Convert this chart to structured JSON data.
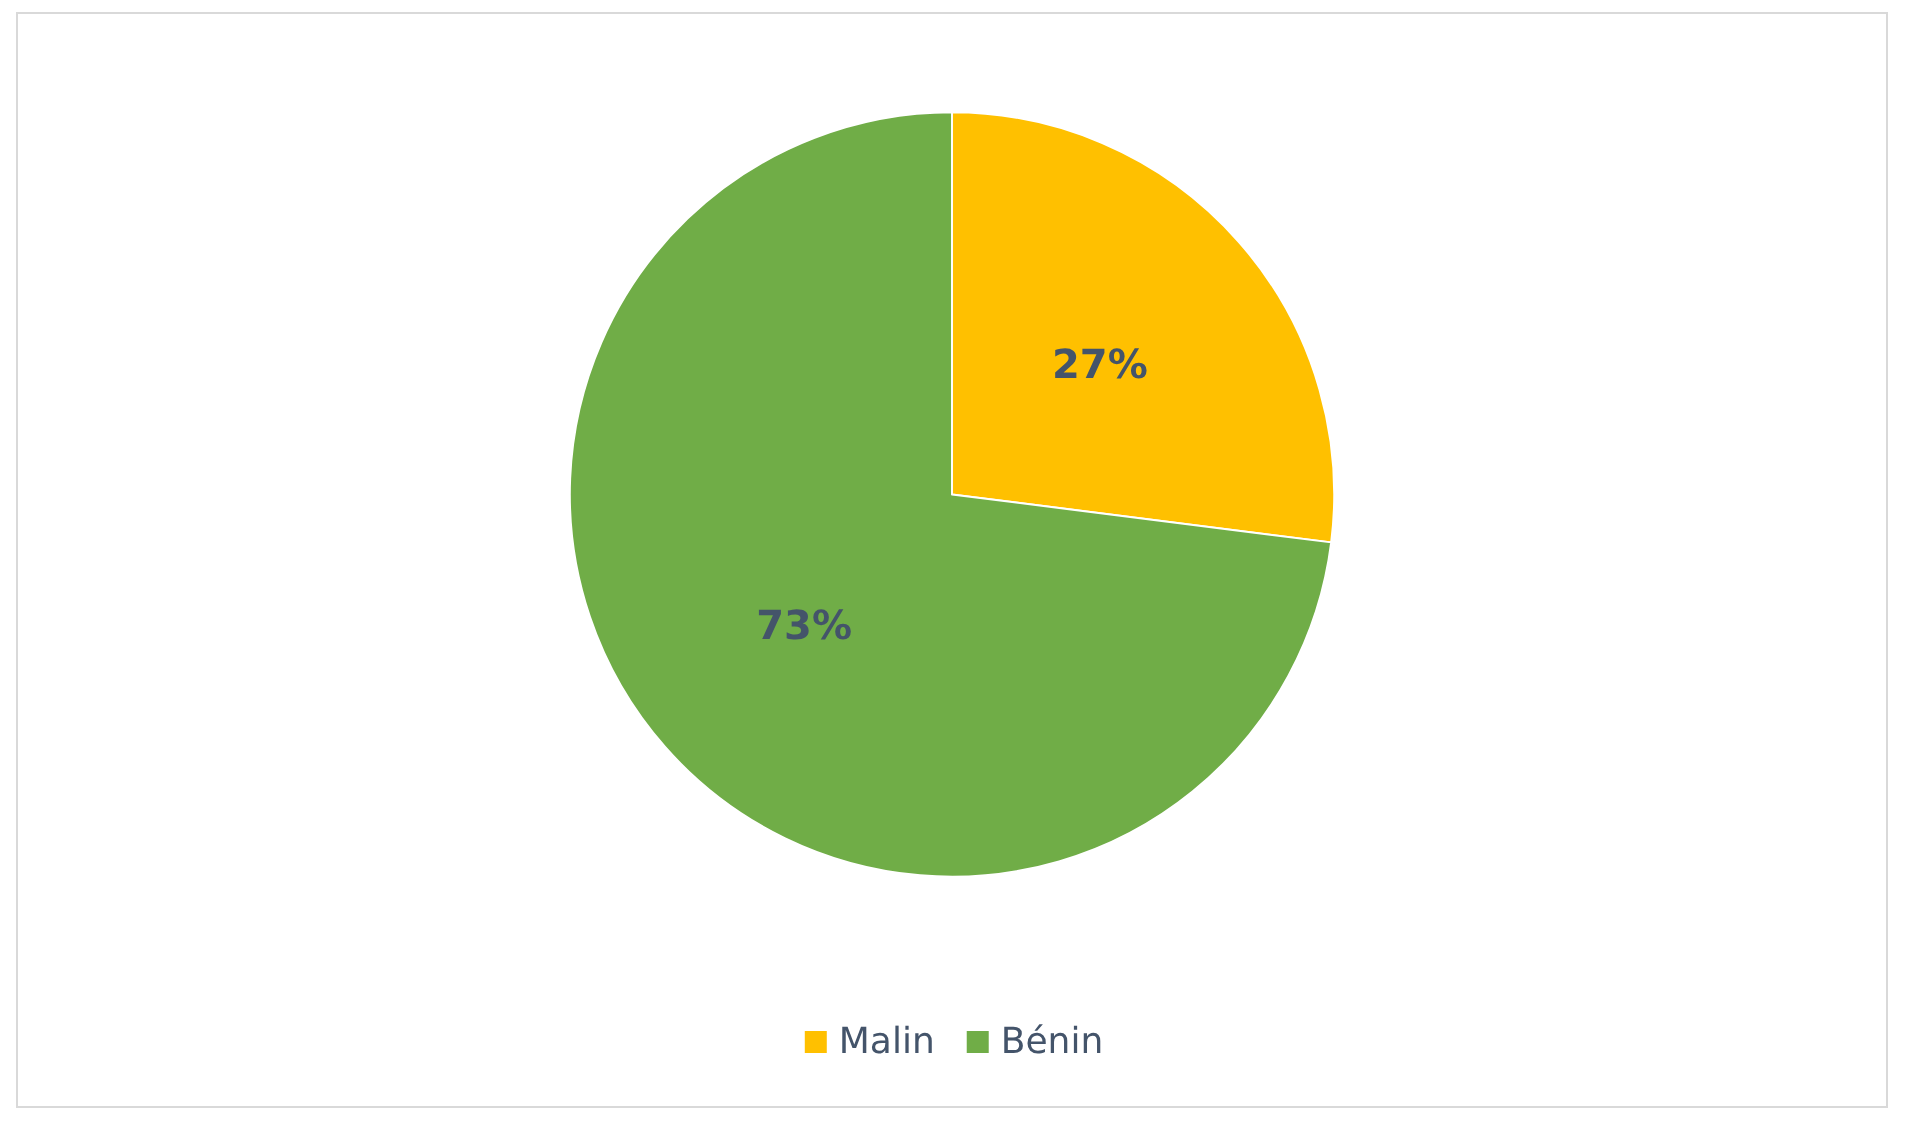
{
  "chart_data": {
    "type": "pie",
    "categories": [
      "Malin",
      "Bénin"
    ],
    "values": [
      27,
      73
    ],
    "colors": [
      "#ffc000",
      "#70ad47"
    ],
    "value_labels": [
      "27%",
      "73%"
    ],
    "legend": "bottom"
  }
}
